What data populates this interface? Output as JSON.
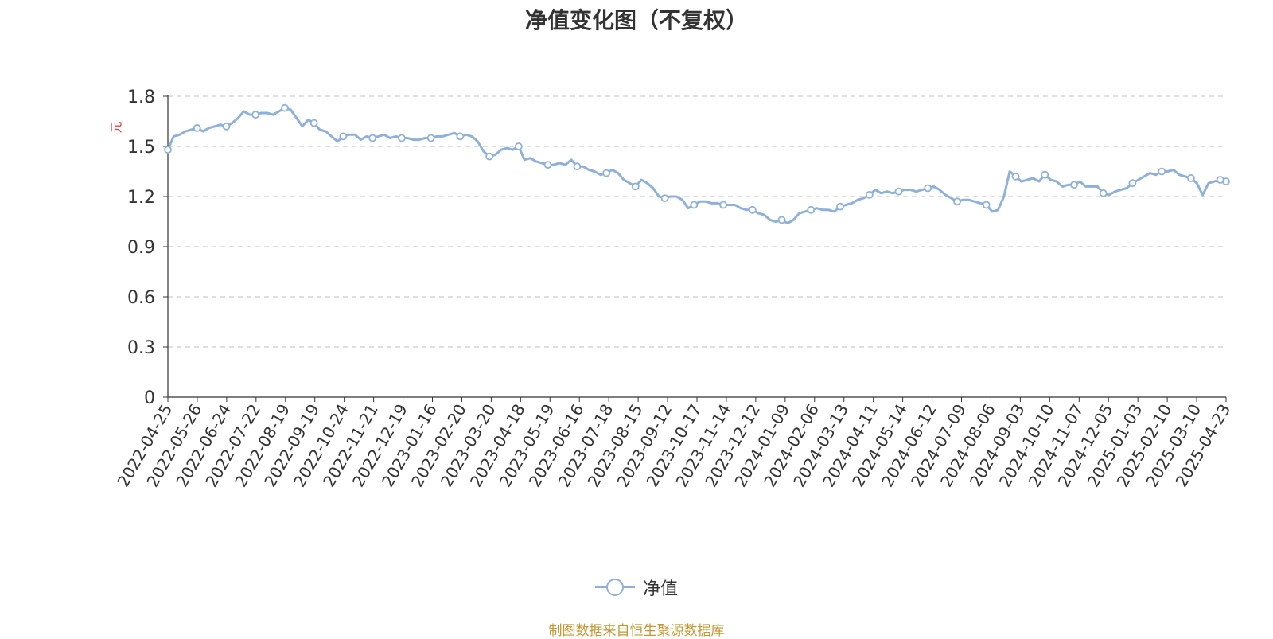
{
  "chart_data": {
    "type": "line",
    "title": "净值变化图（不复权）",
    "ylabel": "元",
    "ylim": [
      0,
      1.8
    ],
    "yticks": [
      0,
      0.3,
      0.6,
      0.9,
      1.2,
      1.5,
      1.8
    ],
    "ytick_labels": [
      "0",
      "0.3",
      "0.6",
      "0.9",
      "1.2",
      "1.5",
      "1.8"
    ],
    "grid": true,
    "legend_position": "bottom-center",
    "series_color": "#8eb0dc",
    "xticks": [
      "2022-04-25",
      "2022-05-26",
      "2022-06-24",
      "2022-07-22",
      "2022-08-19",
      "2022-09-19",
      "2022-10-24",
      "2022-11-21",
      "2022-12-19",
      "2023-01-16",
      "2023-02-20",
      "2023-03-20",
      "2023-04-18",
      "2023-05-19",
      "2023-06-16",
      "2023-07-18",
      "2023-08-15",
      "2023-09-12",
      "2023-10-17",
      "2023-11-14",
      "2023-12-12",
      "2024-01-09",
      "2024-02-06",
      "2024-03-13",
      "2024-04-11",
      "2024-05-14",
      "2024-06-12",
      "2024-07-09",
      "2024-08-06",
      "2024-09-03",
      "2024-10-10",
      "2024-11-07",
      "2024-12-05",
      "2025-01-03",
      "2025-02-10",
      "2025-03-10",
      "2025-04-23"
    ],
    "series": [
      {
        "name": "净值",
        "values": [
          1.48,
          1.56,
          1.57,
          1.59,
          1.6,
          1.61,
          1.59,
          1.61,
          1.62,
          1.63,
          1.62,
          1.64,
          1.67,
          1.71,
          1.69,
          1.69,
          1.7,
          1.7,
          1.69,
          1.71,
          1.73,
          1.72,
          1.67,
          1.62,
          1.66,
          1.64,
          1.6,
          1.59,
          1.56,
          1.53,
          1.56,
          1.57,
          1.57,
          1.54,
          1.56,
          1.55,
          1.56,
          1.57,
          1.55,
          1.56,
          1.55,
          1.55,
          1.54,
          1.54,
          1.55,
          1.55,
          1.56,
          1.56,
          1.57,
          1.58,
          1.56,
          1.57,
          1.56,
          1.53,
          1.47,
          1.44,
          1.45,
          1.48,
          1.49,
          1.48,
          1.5,
          1.42,
          1.43,
          1.41,
          1.4,
          1.39,
          1.39,
          1.4,
          1.39,
          1.42,
          1.38,
          1.38,
          1.36,
          1.35,
          1.33,
          1.34,
          1.36,
          1.34,
          1.3,
          1.28,
          1.26,
          1.3,
          1.28,
          1.25,
          1.2,
          1.19,
          1.2,
          1.2,
          1.18,
          1.13,
          1.15,
          1.17,
          1.17,
          1.16,
          1.16,
          1.15,
          1.15,
          1.15,
          1.13,
          1.12,
          1.12,
          1.1,
          1.09,
          1.06,
          1.05,
          1.06,
          1.04,
          1.06,
          1.1,
          1.11,
          1.12,
          1.13,
          1.12,
          1.12,
          1.11,
          1.14,
          1.15,
          1.16,
          1.18,
          1.19,
          1.21,
          1.24,
          1.22,
          1.23,
          1.22,
          1.23,
          1.24,
          1.24,
          1.23,
          1.24,
          1.25,
          1.26,
          1.24,
          1.21,
          1.19,
          1.17,
          1.18,
          1.18,
          1.17,
          1.16,
          1.15,
          1.11,
          1.12,
          1.2,
          1.35,
          1.32,
          1.29,
          1.3,
          1.31,
          1.29,
          1.33,
          1.3,
          1.29,
          1.26,
          1.27,
          1.27,
          1.29,
          1.26,
          1.26,
          1.26,
          1.22,
          1.21,
          1.23,
          1.24,
          1.25,
          1.28,
          1.3,
          1.32,
          1.34,
          1.33,
          1.35,
          1.35,
          1.36,
          1.33,
          1.32,
          1.31,
          1.28,
          1.21,
          1.28,
          1.29,
          1.3,
          1.29
        ]
      }
    ]
  },
  "footer": {
    "source": "制图数据来自恒生聚源数据库"
  }
}
